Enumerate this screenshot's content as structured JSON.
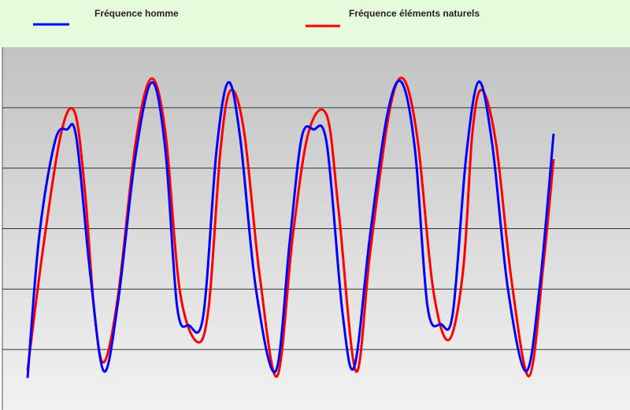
{
  "chart_data": {
    "type": "line",
    "series": [
      {
        "name": "Fréquence homme",
        "color": "#0000ff",
        "x": [
          35,
          50,
          70,
          85,
          97,
          115,
          132,
          150,
          172,
          193,
          210,
          225,
          240,
          258,
          275,
          290,
          305,
          325,
          350,
          368,
          383,
          398,
          415,
          435,
          450,
          470,
          492,
          510,
          527,
          543,
          560,
          575,
          592,
          608,
          625,
          645,
          668,
          685,
          703
        ],
        "values": [
          0.53,
          2.9,
          4.45,
          4.64,
          4.5,
          2.2,
          0.64,
          1.8,
          4.2,
          5.42,
          4.3,
          1.7,
          1.4,
          1.55,
          4.3,
          5.42,
          4.5,
          2.0,
          0.64,
          2.8,
          4.5,
          4.64,
          4.4,
          1.6,
          0.72,
          2.9,
          4.9,
          5.42,
          4.3,
          1.7,
          1.42,
          1.6,
          4.2,
          5.43,
          4.4,
          2.0,
          0.64,
          2.0,
          4.57
        ]
      },
      {
        "name": "Fréquence éléments naturels",
        "color": "#ff0000",
        "x": [
          35,
          55,
          78,
          95,
          108,
          120,
          132,
          150,
          172,
          192,
          210,
          228,
          250,
          265,
          280,
          293,
          310,
          330,
          352,
          372,
          392,
          415,
          430,
          452,
          470,
          494,
          512,
          530,
          550,
          570,
          588,
          600,
          612,
          630,
          650,
          672,
          690,
          703
        ],
        "values": [
          0.66,
          2.7,
          4.6,
          4.92,
          3.6,
          1.6,
          0.79,
          1.9,
          4.4,
          5.48,
          4.6,
          2.0,
          1.13,
          1.7,
          4.3,
          5.29,
          4.6,
          2.2,
          0.56,
          2.9,
          4.6,
          4.87,
          3.3,
          0.64,
          2.6,
          4.9,
          5.48,
          4.5,
          2.0,
          1.16,
          2.3,
          4.6,
          5.29,
          4.4,
          2.1,
          0.56,
          2.4,
          4.15
        ]
      }
    ],
    "xlim": [
      0,
      800
    ],
    "ylim": [
      0,
      6
    ],
    "yticks": [
      1,
      2,
      3,
      4,
      5
    ],
    "grid": true
  }
}
